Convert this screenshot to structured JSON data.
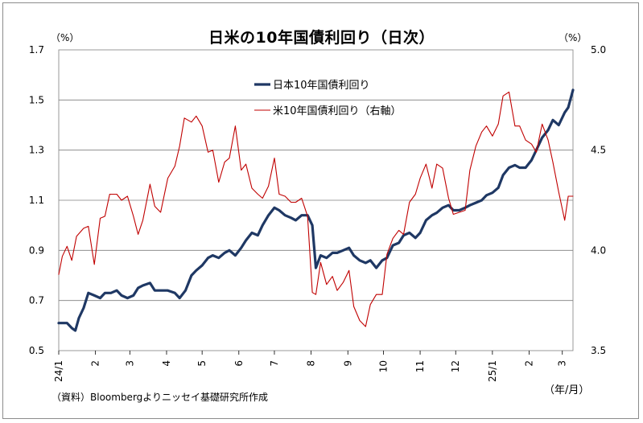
{
  "title": "日米の10年国債利回り（日次）",
  "left_unit": "（%）",
  "right_unit": "（%）",
  "x_unit": "（年/月）",
  "source": "（資料）Bloombergよりニッセイ基礎研究所作成",
  "colors": {
    "jp": "#1f3864",
    "us": "#c00000",
    "grid": "#7f7f7f"
  },
  "chart_data": {
    "type": "line",
    "title": "日米の10年国債利回り（日次）",
    "x_tick_labels": [
      "24/1",
      "2",
      "3",
      "4",
      "5",
      "6",
      "7",
      "8",
      "9",
      "10",
      "11",
      "12",
      "25/1",
      "2",
      "3"
    ],
    "x_range": [
      "2024-01-01",
      "2025-03-10"
    ],
    "y_left": {
      "ticks": [
        "0.5",
        "0.7",
        "0.9",
        "1.1",
        "1.3",
        "1.5",
        "1.7"
      ],
      "ylim": [
        0.5,
        1.7
      ],
      "unit": "%"
    },
    "y_right": {
      "ticks": [
        "3.5",
        "4.0",
        "4.5",
        "5.0"
      ],
      "ylim": [
        3.5,
        5.0
      ],
      "unit": "%"
    },
    "grid": true,
    "legend_position": "top-center",
    "series": [
      {
        "name": "日本10年国債利回り",
        "axis": "left",
        "color": "#1f3864",
        "points": [
          [
            "2024-01-01",
            0.61
          ],
          [
            "2024-01-08",
            0.61
          ],
          [
            "2024-01-12",
            0.59
          ],
          [
            "2024-01-15",
            0.58
          ],
          [
            "2024-01-18",
            0.63
          ],
          [
            "2024-01-22",
            0.67
          ],
          [
            "2024-01-26",
            0.73
          ],
          [
            "2024-01-31",
            0.72
          ],
          [
            "2024-02-05",
            0.71
          ],
          [
            "2024-02-09",
            0.73
          ],
          [
            "2024-02-14",
            0.73
          ],
          [
            "2024-02-19",
            0.74
          ],
          [
            "2024-02-23",
            0.72
          ],
          [
            "2024-02-28",
            0.71
          ],
          [
            "2024-03-04",
            0.72
          ],
          [
            "2024-03-08",
            0.75
          ],
          [
            "2024-03-12",
            0.76
          ],
          [
            "2024-03-18",
            0.77
          ],
          [
            "2024-03-22",
            0.74
          ],
          [
            "2024-03-27",
            0.74
          ],
          [
            "2024-04-02",
            0.74
          ],
          [
            "2024-04-08",
            0.73
          ],
          [
            "2024-04-12",
            0.71
          ],
          [
            "2024-04-17",
            0.74
          ],
          [
            "2024-04-22",
            0.8
          ],
          [
            "2024-04-26",
            0.82
          ],
          [
            "2024-05-01",
            0.84
          ],
          [
            "2024-05-06",
            0.87
          ],
          [
            "2024-05-10",
            0.88
          ],
          [
            "2024-05-15",
            0.87
          ],
          [
            "2024-05-20",
            0.89
          ],
          [
            "2024-05-24",
            0.9
          ],
          [
            "2024-05-29",
            0.88
          ],
          [
            "2024-06-03",
            0.91
          ],
          [
            "2024-06-07",
            0.94
          ],
          [
            "2024-06-12",
            0.97
          ],
          [
            "2024-06-17",
            0.96
          ],
          [
            "2024-06-21",
            1.0
          ],
          [
            "2024-06-26",
            1.04
          ],
          [
            "2024-07-01",
            1.07
          ],
          [
            "2024-07-05",
            1.06
          ],
          [
            "2024-07-10",
            1.04
          ],
          [
            "2024-07-15",
            1.03
          ],
          [
            "2024-07-19",
            1.02
          ],
          [
            "2024-07-24",
            1.04
          ],
          [
            "2024-07-29",
            1.04
          ],
          [
            "2024-08-02",
            1.0
          ],
          [
            "2024-08-05",
            0.83
          ],
          [
            "2024-08-09",
            0.88
          ],
          [
            "2024-08-14",
            0.87
          ],
          [
            "2024-08-19",
            0.89
          ],
          [
            "2024-08-23",
            0.89
          ],
          [
            "2024-08-28",
            0.9
          ],
          [
            "2024-09-02",
            0.91
          ],
          [
            "2024-09-06",
            0.88
          ],
          [
            "2024-09-11",
            0.86
          ],
          [
            "2024-09-16",
            0.85
          ],
          [
            "2024-09-20",
            0.86
          ],
          [
            "2024-09-25",
            0.83
          ],
          [
            "2024-09-30",
            0.86
          ],
          [
            "2024-10-04",
            0.87
          ],
          [
            "2024-10-09",
            0.92
          ],
          [
            "2024-10-14",
            0.93
          ],
          [
            "2024-10-18",
            0.96
          ],
          [
            "2024-10-23",
            0.97
          ],
          [
            "2024-10-28",
            0.95
          ],
          [
            "2024-11-01",
            0.97
          ],
          [
            "2024-11-06",
            1.02
          ],
          [
            "2024-11-11",
            1.04
          ],
          [
            "2024-11-15",
            1.05
          ],
          [
            "2024-11-20",
            1.07
          ],
          [
            "2024-11-25",
            1.08
          ],
          [
            "2024-11-29",
            1.06
          ],
          [
            "2024-12-04",
            1.06
          ],
          [
            "2024-12-09",
            1.07
          ],
          [
            "2024-12-13",
            1.08
          ],
          [
            "2024-12-18",
            1.09
          ],
          [
            "2024-12-23",
            1.1
          ],
          [
            "2024-12-27",
            1.12
          ],
          [
            "2025-01-01",
            1.13
          ],
          [
            "2025-01-06",
            1.15
          ],
          [
            "2025-01-10",
            1.2
          ],
          [
            "2025-01-15",
            1.23
          ],
          [
            "2025-01-20",
            1.24
          ],
          [
            "2025-01-24",
            1.23
          ],
          [
            "2025-01-29",
            1.23
          ],
          [
            "2025-02-03",
            1.26
          ],
          [
            "2025-02-07",
            1.3
          ],
          [
            "2025-02-12",
            1.35
          ],
          [
            "2025-02-17",
            1.38
          ],
          [
            "2025-02-21",
            1.42
          ],
          [
            "2025-02-26",
            1.4
          ],
          [
            "2025-03-03",
            1.45
          ],
          [
            "2025-03-06",
            1.47
          ],
          [
            "2025-03-10",
            1.54
          ]
        ]
      },
      {
        "name": "米10年国債利回り（右軸）",
        "axis": "right",
        "color": "#c00000",
        "points": [
          [
            "2024-01-01",
            3.88
          ],
          [
            "2024-01-04",
            3.97
          ],
          [
            "2024-01-08",
            4.02
          ],
          [
            "2024-01-12",
            3.95
          ],
          [
            "2024-01-16",
            4.07
          ],
          [
            "2024-01-22",
            4.11
          ],
          [
            "2024-01-26",
            4.12
          ],
          [
            "2024-01-31",
            3.93
          ],
          [
            "2024-02-05",
            4.16
          ],
          [
            "2024-02-09",
            4.17
          ],
          [
            "2024-02-13",
            4.28
          ],
          [
            "2024-02-19",
            4.28
          ],
          [
            "2024-02-23",
            4.25
          ],
          [
            "2024-02-28",
            4.27
          ],
          [
            "2024-03-04",
            4.17
          ],
          [
            "2024-03-08",
            4.08
          ],
          [
            "2024-03-12",
            4.15
          ],
          [
            "2024-03-18",
            4.33
          ],
          [
            "2024-03-22",
            4.22
          ],
          [
            "2024-03-27",
            4.19
          ],
          [
            "2024-04-02",
            4.36
          ],
          [
            "2024-04-08",
            4.42
          ],
          [
            "2024-04-12",
            4.52
          ],
          [
            "2024-04-16",
            4.66
          ],
          [
            "2024-04-22",
            4.64
          ],
          [
            "2024-04-26",
            4.67
          ],
          [
            "2024-05-01",
            4.62
          ],
          [
            "2024-05-06",
            4.49
          ],
          [
            "2024-05-10",
            4.5
          ],
          [
            "2024-05-15",
            4.34
          ],
          [
            "2024-05-20",
            4.44
          ],
          [
            "2024-05-24",
            4.46
          ],
          [
            "2024-05-29",
            4.62
          ],
          [
            "2024-06-03",
            4.4
          ],
          [
            "2024-06-07",
            4.43
          ],
          [
            "2024-06-12",
            4.31
          ],
          [
            "2024-06-17",
            4.28
          ],
          [
            "2024-06-21",
            4.26
          ],
          [
            "2024-06-26",
            4.32
          ],
          [
            "2024-07-01",
            4.46
          ],
          [
            "2024-07-05",
            4.28
          ],
          [
            "2024-07-10",
            4.27
          ],
          [
            "2024-07-15",
            4.24
          ],
          [
            "2024-07-19",
            4.24
          ],
          [
            "2024-07-24",
            4.26
          ],
          [
            "2024-07-29",
            4.17
          ],
          [
            "2024-08-02",
            3.79
          ],
          [
            "2024-08-05",
            3.78
          ],
          [
            "2024-08-09",
            3.94
          ],
          [
            "2024-08-14",
            3.83
          ],
          [
            "2024-08-19",
            3.87
          ],
          [
            "2024-08-23",
            3.8
          ],
          [
            "2024-08-28",
            3.84
          ],
          [
            "2024-09-02",
            3.9
          ],
          [
            "2024-09-06",
            3.72
          ],
          [
            "2024-09-11",
            3.65
          ],
          [
            "2024-09-16",
            3.62
          ],
          [
            "2024-09-20",
            3.73
          ],
          [
            "2024-09-25",
            3.78
          ],
          [
            "2024-09-30",
            3.78
          ],
          [
            "2024-10-04",
            3.98
          ],
          [
            "2024-10-09",
            4.06
          ],
          [
            "2024-10-14",
            4.1
          ],
          [
            "2024-10-18",
            4.08
          ],
          [
            "2024-10-23",
            4.24
          ],
          [
            "2024-10-28",
            4.28
          ],
          [
            "2024-11-01",
            4.36
          ],
          [
            "2024-11-06",
            4.43
          ],
          [
            "2024-11-11",
            4.31
          ],
          [
            "2024-11-15",
            4.43
          ],
          [
            "2024-11-20",
            4.41
          ],
          [
            "2024-11-25",
            4.26
          ],
          [
            "2024-11-29",
            4.18
          ],
          [
            "2024-12-04",
            4.19
          ],
          [
            "2024-12-09",
            4.2
          ],
          [
            "2024-12-13",
            4.4
          ],
          [
            "2024-12-18",
            4.52
          ],
          [
            "2024-12-23",
            4.59
          ],
          [
            "2024-12-27",
            4.62
          ],
          [
            "2025-01-01",
            4.57
          ],
          [
            "2025-01-06",
            4.63
          ],
          [
            "2025-01-10",
            4.77
          ],
          [
            "2025-01-15",
            4.79
          ],
          [
            "2025-01-20",
            4.62
          ],
          [
            "2025-01-24",
            4.62
          ],
          [
            "2025-01-29",
            4.55
          ],
          [
            "2025-02-03",
            4.53
          ],
          [
            "2025-02-07",
            4.49
          ],
          [
            "2025-02-12",
            4.63
          ],
          [
            "2025-02-17",
            4.55
          ],
          [
            "2025-02-21",
            4.44
          ],
          [
            "2025-02-26",
            4.29
          ],
          [
            "2025-03-03",
            4.15
          ],
          [
            "2025-03-06",
            4.27
          ],
          [
            "2025-03-10",
            4.27
          ]
        ]
      }
    ]
  }
}
